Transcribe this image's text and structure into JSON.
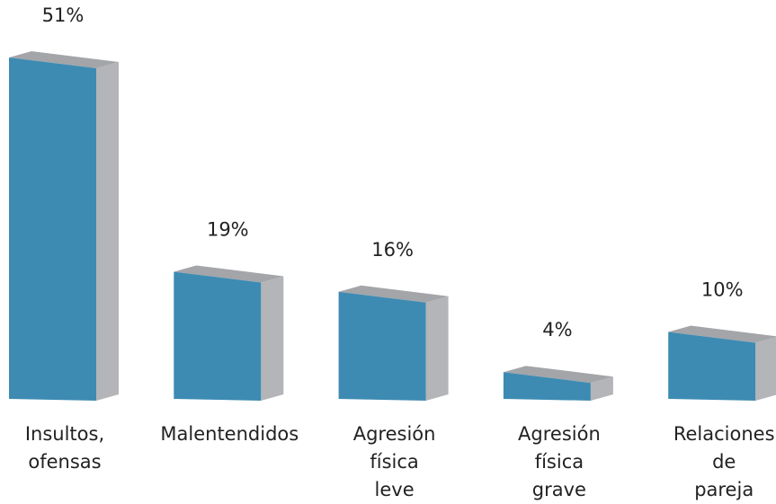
{
  "chart_data": {
    "type": "bar3d",
    "categories": [
      "Insultos, ofensas",
      "Malentendidos",
      "Agresión física leve",
      "Agresión física grave",
      "Relaciones de pareja"
    ],
    "values": [
      51,
      19,
      16,
      4,
      10
    ],
    "value_labels": [
      "51%",
      "19%",
      "16%",
      "4%",
      "10%"
    ],
    "color": "#3d8bb3"
  }
}
